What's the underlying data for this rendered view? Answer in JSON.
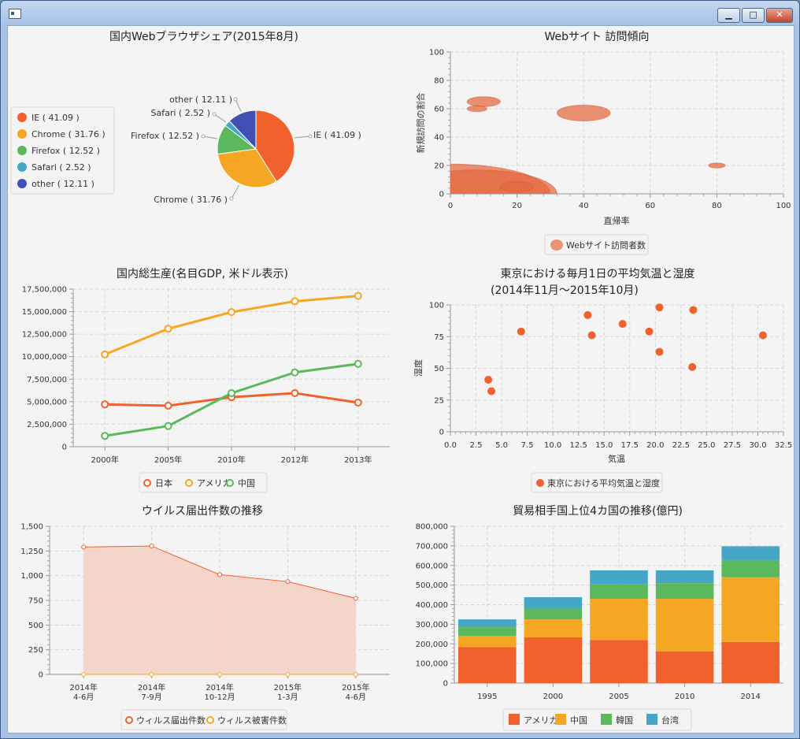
{
  "window": {
    "minimize_icon": "minimize-icon",
    "maximize_icon": "maximize-icon",
    "close_icon": "close-icon"
  },
  "colors": {
    "red": "#f0612d",
    "orange": "#f5a623",
    "green": "#5cb85c",
    "teal": "#45a6c8",
    "indigo": "#3f51b5",
    "fill": "#f5d0c4"
  },
  "chart_data": [
    {
      "id": "pie",
      "type": "pie",
      "title": "国内Webブラウザシェア(2015年8月)",
      "slices": [
        {
          "name": "IE",
          "value": 41.09,
          "label": "IE ( 41.09 )"
        },
        {
          "name": "Chrome",
          "value": 31.76,
          "label": "Chrome ( 31.76 )"
        },
        {
          "name": "Firefox",
          "value": 12.52,
          "label": "Firefox ( 12.52 )"
        },
        {
          "name": "Safari",
          "value": 2.52,
          "label": "Safari ( 2.52 )"
        },
        {
          "name": "other",
          "value": 12.11,
          "label": "other ( 12.11 )"
        }
      ],
      "legend": "left"
    },
    {
      "id": "bubble",
      "type": "scatter",
      "title": "Webサイト 訪問傾向",
      "xlabel": "直帰率",
      "ylabel": "新規訪問の割合",
      "xlim": [
        0,
        100
      ],
      "ylim": [
        0,
        100
      ],
      "xticks": [
        "0",
        "20",
        "40",
        "60",
        "80",
        "100"
      ],
      "yticks": [
        "0",
        "20",
        "40",
        "60",
        "80",
        "100"
      ],
      "series": [
        {
          "name": "Webサイト訪問者数",
          "points": [
            {
              "x": 0,
              "y": 0,
              "r": 30
            },
            {
              "x": 8,
              "y": 0,
              "r": 24
            },
            {
              "x": 20,
              "y": 5,
              "r": 5
            },
            {
              "x": 10,
              "y": 65,
              "r": 5
            },
            {
              "x": 8,
              "y": 60,
              "r": 3
            },
            {
              "x": 40,
              "y": 57,
              "r": 8
            },
            {
              "x": 80,
              "y": 20,
              "r": 2.5
            }
          ]
        }
      ],
      "grid": true
    },
    {
      "id": "gdp",
      "type": "line",
      "title": "国内総生産(名目GDP, 米ドル表示)",
      "categories": [
        "2000年",
        "2005年",
        "2010年",
        "2012年",
        "2013年"
      ],
      "ylim": [
        0,
        17500000
      ],
      "yticks": [
        "0",
        "2,500,000",
        "5,000,000",
        "7,500,000",
        "10,000,000",
        "12,500,000",
        "15,000,000",
        "17,500,000"
      ],
      "series": [
        {
          "name": "日本",
          "values": [
            4700000,
            4550000,
            5500000,
            5950000,
            4900000
          ]
        },
        {
          "name": "アメリカ",
          "values": [
            10250000,
            13100000,
            14950000,
            16150000,
            16750000
          ]
        },
        {
          "name": "中国",
          "values": [
            1200000,
            2300000,
            5950000,
            8250000,
            9200000
          ]
        }
      ],
      "grid": true
    },
    {
      "id": "weather",
      "type": "scatter",
      "title": "東京における毎月1日の平均気温と湿度",
      "subtitle": "(2014年11月～2015年10月)",
      "xlabel": "気温",
      "ylabel": "湿度",
      "xlim": [
        0,
        32.5
      ],
      "ylim": [
        0,
        100
      ],
      "xticks": [
        "0.0",
        "2.5",
        "5.0",
        "7.5",
        "10.0",
        "12.5",
        "15.0",
        "17.5",
        "20.0",
        "22.5",
        "25.0",
        "27.5",
        "30.0",
        "32.5"
      ],
      "yticks": [
        "0",
        "25",
        "50",
        "75",
        "100"
      ],
      "series": [
        {
          "name": "東京における平均気温と湿度",
          "points": [
            {
              "x": 3.7,
              "y": 41
            },
            {
              "x": 4.0,
              "y": 32
            },
            {
              "x": 6.9,
              "y": 79
            },
            {
              "x": 13.4,
              "y": 92
            },
            {
              "x": 13.8,
              "y": 76
            },
            {
              "x": 16.8,
              "y": 85
            },
            {
              "x": 19.4,
              "y": 79
            },
            {
              "x": 20.4,
              "y": 98
            },
            {
              "x": 20.4,
              "y": 63
            },
            {
              "x": 23.7,
              "y": 96
            },
            {
              "x": 23.6,
              "y": 51
            },
            {
              "x": 30.5,
              "y": 76
            }
          ]
        }
      ],
      "grid": true
    },
    {
      "id": "virus",
      "type": "area",
      "title": "ウイルス届出件数の推移",
      "categories": [
        [
          "2014年",
          "4-6月"
        ],
        [
          "2014年",
          "7-9月"
        ],
        [
          "2014年",
          "10-12月"
        ],
        [
          "2015年",
          "1-3月"
        ],
        [
          "2015年",
          "4-6月"
        ]
      ],
      "ylim": [
        0,
        1500
      ],
      "yticks": [
        "0",
        "250",
        "500",
        "750",
        "1,000",
        "1,250",
        "1,500"
      ],
      "series": [
        {
          "name": "ウィルス届出件数",
          "values": [
            1290,
            1300,
            1010,
            940,
            770
          ]
        },
        {
          "name": "ウィルス被害件数",
          "values": [
            0,
            0,
            0,
            0,
            0
          ]
        }
      ],
      "grid": true
    },
    {
      "id": "trade",
      "type": "bar",
      "stacked": true,
      "title": "貿易相手国上位4カ国の推移(億円)",
      "categories": [
        "1995",
        "2000",
        "2005",
        "2010",
        "2014"
      ],
      "ylim": [
        0,
        800000
      ],
      "yticks": [
        "0",
        "100,000",
        "200,000",
        "300,000",
        "400,000",
        "500,000",
        "600,000",
        "700,000",
        "800,000"
      ],
      "series": [
        {
          "name": "アメリカ",
          "values": [
            183000,
            233000,
            220000,
            162000,
            210000
          ]
        },
        {
          "name": "中国",
          "values": [
            58000,
            92000,
            210000,
            268000,
            330000
          ]
        },
        {
          "name": "韓国",
          "values": [
            44000,
            55000,
            75000,
            80000,
            88000
          ]
        },
        {
          "name": "台湾",
          "values": [
            40000,
            58000,
            70000,
            65000,
            70000
          ]
        }
      ],
      "grid": true
    }
  ]
}
